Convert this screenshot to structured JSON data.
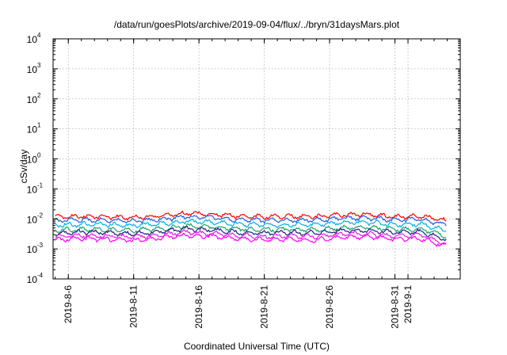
{
  "chart_data": {
    "type": "line",
    "title": "/data/run/goesPlots/archive/2019-09-04/flux/../bryn/31daysMars.plot",
    "xlabel": "Coordinated Universal Time (UTC)",
    "ylabel": "cSv/day",
    "yscale": "log",
    "ylim": [
      0.0001,
      10000
    ],
    "yticks": [
      {
        "base": "10",
        "exp": "-4"
      },
      {
        "base": "10",
        "exp": "-3"
      },
      {
        "base": "10",
        "exp": "-2"
      },
      {
        "base": "10",
        "exp": "-1"
      },
      {
        "base": "10",
        "exp": "0"
      },
      {
        "base": "10",
        "exp": "1"
      },
      {
        "base": "10",
        "exp": "2"
      },
      {
        "base": "10",
        "exp": "3"
      },
      {
        "base": "10",
        "exp": "4"
      }
    ],
    "xlim": [
      "2019-08-04T20:00",
      "2019-09-05T00:00"
    ],
    "xticks": [
      {
        "label": "2019-8-6",
        "date": "2019-08-06"
      },
      {
        "label": "2019-8-11",
        "date": "2019-08-11"
      },
      {
        "label": "2019-8-16",
        "date": "2019-08-16"
      },
      {
        "label": "2019-8-21",
        "date": "2019-08-21"
      },
      {
        "label": "2019-8-26",
        "date": "2019-08-26"
      },
      {
        "label": "2019-8-31",
        "date": "2019-08-31"
      },
      {
        "label": "2019-9-1",
        "date": "2019-09-01"
      }
    ],
    "grid": true,
    "series": [
      {
        "color": "#ff0000",
        "dates": [
          "2019-08-05",
          "2019-08-07",
          "2019-08-09",
          "2019-08-11",
          "2019-08-13",
          "2019-08-15",
          "2019-08-17",
          "2019-08-19",
          "2019-08-21",
          "2019-08-23",
          "2019-08-25",
          "2019-08-27",
          "2019-08-29",
          "2019-08-31",
          "2019-09-02",
          "2019-09-04"
        ],
        "values": [
          0.0115,
          0.012,
          0.0118,
          0.0112,
          0.0125,
          0.0155,
          0.0145,
          0.0125,
          0.0118,
          0.012,
          0.0118,
          0.0138,
          0.014,
          0.0118,
          0.0125,
          0.0085
        ]
      },
      {
        "color": "#1f5fe0",
        "dates": [
          "2019-08-05",
          "2019-08-07",
          "2019-08-09",
          "2019-08-11",
          "2019-08-13",
          "2019-08-15",
          "2019-08-17",
          "2019-08-19",
          "2019-08-21",
          "2019-08-23",
          "2019-08-25",
          "2019-08-27",
          "2019-08-29",
          "2019-08-31",
          "2019-09-02",
          "2019-09-04"
        ],
        "values": [
          0.0088,
          0.0092,
          0.009,
          0.0085,
          0.0095,
          0.0118,
          0.011,
          0.0095,
          0.009,
          0.0092,
          0.009,
          0.0105,
          0.0108,
          0.009,
          0.0096,
          0.0062
        ]
      },
      {
        "color": "#00b0e0",
        "dates": [
          "2019-08-05",
          "2019-08-07",
          "2019-08-09",
          "2019-08-11",
          "2019-08-13",
          "2019-08-15",
          "2019-08-17",
          "2019-08-19",
          "2019-08-21",
          "2019-08-23",
          "2019-08-25",
          "2019-08-27",
          "2019-08-29",
          "2019-08-31",
          "2019-09-02",
          "2019-09-04"
        ],
        "values": [
          0.0062,
          0.0066,
          0.0064,
          0.006,
          0.0068,
          0.0082,
          0.0078,
          0.0067,
          0.0063,
          0.0065,
          0.0063,
          0.0074,
          0.0076,
          0.0064,
          0.0068,
          0.004
        ]
      },
      {
        "color": "#20a070",
        "dates": [
          "2019-08-05",
          "2019-08-07",
          "2019-08-09",
          "2019-08-11",
          "2019-08-13",
          "2019-08-15",
          "2019-08-17",
          "2019-08-19",
          "2019-08-21",
          "2019-08-23",
          "2019-08-25",
          "2019-08-27",
          "2019-08-29",
          "2019-08-31",
          "2019-09-02",
          "2019-09-04"
        ],
        "values": [
          0.0042,
          0.0045,
          0.0044,
          0.0041,
          0.0047,
          0.0058,
          0.0054,
          0.0046,
          0.0043,
          0.0045,
          0.0043,
          0.0051,
          0.0053,
          0.0044,
          0.0047,
          0.0026
        ]
      },
      {
        "color": "#202080",
        "dates": [
          "2019-08-05",
          "2019-08-07",
          "2019-08-09",
          "2019-08-11",
          "2019-08-13",
          "2019-08-15",
          "2019-08-17",
          "2019-08-19",
          "2019-08-21",
          "2019-08-23",
          "2019-08-25",
          "2019-08-27",
          "2019-08-29",
          "2019-08-31",
          "2019-09-02",
          "2019-09-04"
        ],
        "values": [
          0.0033,
          0.0036,
          0.0035,
          0.0032,
          0.0037,
          0.0046,
          0.0043,
          0.0036,
          0.0034,
          0.0035,
          0.0034,
          0.004,
          0.0042,
          0.0035,
          0.0037,
          0.0019
        ]
      },
      {
        "color": "#e020e0",
        "dates": [
          "2019-08-05",
          "2019-08-07",
          "2019-08-09",
          "2019-08-11",
          "2019-08-13",
          "2019-08-15",
          "2019-08-17",
          "2019-08-19",
          "2019-08-21",
          "2019-08-23",
          "2019-08-25",
          "2019-08-27",
          "2019-08-29",
          "2019-08-31",
          "2019-09-02",
          "2019-09-04"
        ],
        "values": [
          0.0026,
          0.0028,
          0.0027,
          0.0025,
          0.0029,
          0.0036,
          0.0033,
          0.0028,
          0.0026,
          0.0027,
          0.0026,
          0.0031,
          0.0032,
          0.0027,
          0.0029,
          0.0014
        ]
      },
      {
        "color": "#ff00ff",
        "dates": [
          "2019-08-05",
          "2019-08-07",
          "2019-08-09",
          "2019-08-11",
          "2019-08-13",
          "2019-08-15",
          "2019-08-17",
          "2019-08-19",
          "2019-08-21",
          "2019-08-23",
          "2019-08-25",
          "2019-08-27",
          "2019-08-29",
          "2019-08-31",
          "2019-09-02",
          "2019-09-04"
        ],
        "values": [
          0.002,
          0.0022,
          0.0021,
          0.0019,
          0.0023,
          0.0028,
          0.0026,
          0.0022,
          0.002,
          0.0021,
          0.002,
          0.0024,
          0.0025,
          0.0021,
          0.0022,
          0.0012
        ]
      }
    ]
  }
}
